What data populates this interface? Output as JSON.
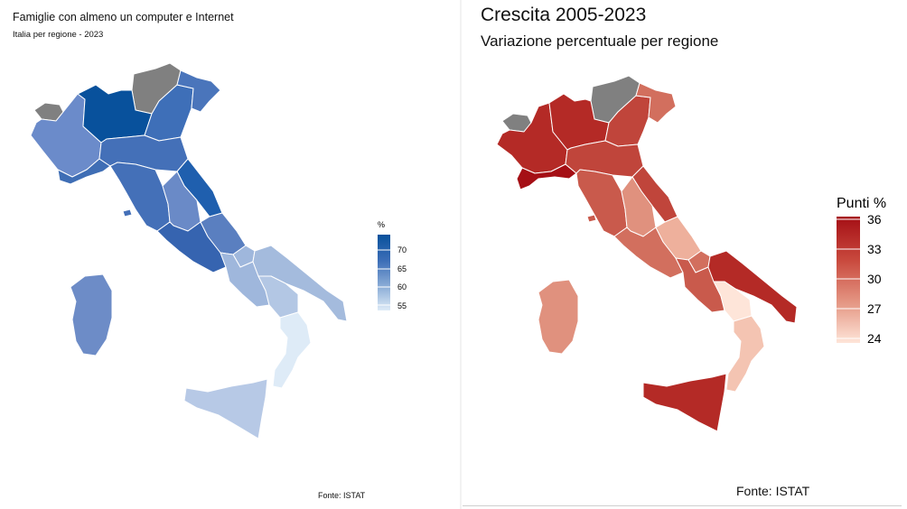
{
  "left_map": {
    "title": "Famiglie con almeno un computer e Internet",
    "subtitle": "Italia per regione - 2023",
    "source": "Fonte: ISTAT",
    "legend": {
      "title": "%",
      "ticks": [
        "70",
        "65",
        "60",
        "55"
      ],
      "color_high": "#08519c",
      "color_low": "#deebf7"
    }
  },
  "right_map": {
    "title": "Crescita 2005-2023",
    "subtitle": "Variazione percentuale per regione",
    "source": "Fonte: ISTAT",
    "legend": {
      "title": "Punti %",
      "ticks": [
        "36",
        "33",
        "30",
        "27",
        "24"
      ],
      "color_high": "#a50f15",
      "color_low": "#fee5d9"
    }
  },
  "colors": {
    "no_data": "#808080",
    "region_border": "#ffffff"
  }
}
